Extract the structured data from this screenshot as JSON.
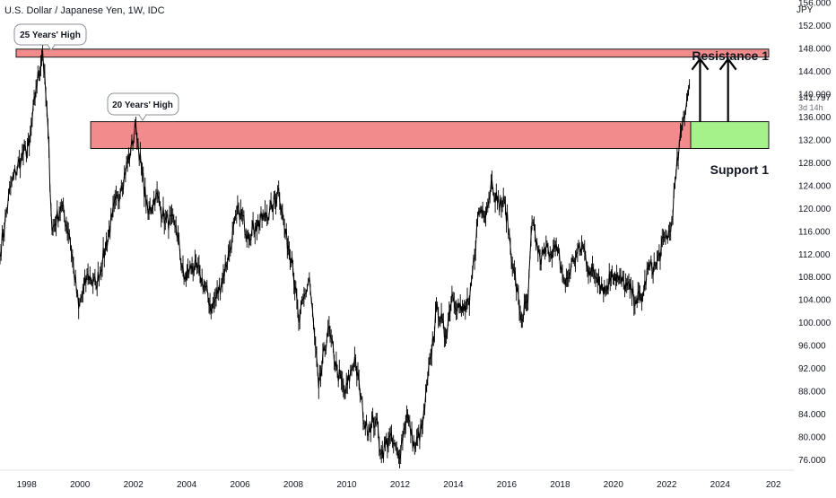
{
  "header": {
    "symbol_title": "U.S. Dollar / Japanese Yen, 1W, IDC",
    "currency": "JPY"
  },
  "price_label": {
    "value": "141.797",
    "countdown": "3d 14h",
    "color": "#131722"
  },
  "annotations": {
    "resistance_label": "Resistance 1",
    "support_label": "Support 1",
    "callout_25": "25 Years' High",
    "callout_20": "20 Years' High"
  },
  "colors": {
    "zone_red": "#f28b8b",
    "zone_green": "#a5f28b",
    "candles": "#000000",
    "axis_text": "#131722"
  },
  "chart_data": {
    "type": "line",
    "title": "U.S. Dollar / Japanese Yen, 1W, IDC",
    "xlabel": "",
    "ylabel": "JPY",
    "ylim": [
      74.5,
      156.5
    ],
    "xlim": [
      1997.0,
      2026.8
    ],
    "grid": false,
    "x_ticks": [
      "1998",
      "2000",
      "2002",
      "2004",
      "2006",
      "2008",
      "2010",
      "2012",
      "2014",
      "2016",
      "2018",
      "2020",
      "2022",
      "2024",
      "202"
    ],
    "y_ticks": [
      "156.000",
      "152.000",
      "148.000",
      "144.000",
      "140.000",
      "136.000",
      "132.000",
      "128.000",
      "124.000",
      "120.000",
      "116.000",
      "112.000",
      "108.000",
      "104.000",
      "100.000",
      "96.000",
      "92.000",
      "88.000",
      "84.000",
      "80.000",
      "76.000"
    ],
    "series": [
      {
        "values": [
          [
            1997.0,
            112.0
          ],
          [
            1997.4,
            124.0
          ],
          [
            1997.8,
            129.0
          ],
          [
            1998.1,
            131.0
          ],
          [
            1998.35,
            141.0
          ],
          [
            1998.6,
            147.5
          ],
          [
            1998.8,
            134.0
          ],
          [
            1998.95,
            116.0
          ],
          [
            1999.3,
            120.5
          ],
          [
            1999.6,
            115.5
          ],
          [
            1999.95,
            102.5
          ],
          [
            2000.3,
            108.5
          ],
          [
            2000.6,
            106.5
          ],
          [
            2000.95,
            113.0
          ],
          [
            2001.2,
            118.5
          ],
          [
            2001.55,
            124.0
          ],
          [
            2001.9,
            130.0
          ],
          [
            2002.1,
            134.5
          ],
          [
            2002.3,
            127.0
          ],
          [
            2002.55,
            119.0
          ],
          [
            2002.85,
            122.5
          ],
          [
            2003.2,
            118.0
          ],
          [
            2003.6,
            117.0
          ],
          [
            2003.9,
            107.5
          ],
          [
            2004.2,
            110.0
          ],
          [
            2004.5,
            108.5
          ],
          [
            2004.95,
            102.5
          ],
          [
            2005.3,
            107.0
          ],
          [
            2005.6,
            112.5
          ],
          [
            2005.95,
            120.0
          ],
          [
            2006.3,
            115.5
          ],
          [
            2006.6,
            117.0
          ],
          [
            2006.9,
            118.5
          ],
          [
            2007.2,
            120.0
          ],
          [
            2007.45,
            123.5
          ],
          [
            2007.7,
            115.5
          ],
          [
            2007.95,
            111.5
          ],
          [
            2008.2,
            100.0
          ],
          [
            2008.6,
            108.0
          ],
          [
            2008.95,
            88.5
          ],
          [
            2009.3,
            99.0
          ],
          [
            2009.65,
            91.5
          ],
          [
            2009.95,
            87.5
          ],
          [
            2010.3,
            94.0
          ],
          [
            2010.7,
            81.5
          ],
          [
            2011.1,
            83.0
          ],
          [
            2011.3,
            77.0
          ],
          [
            2011.6,
            80.0
          ],
          [
            2011.95,
            76.5
          ],
          [
            2012.25,
            84.0
          ],
          [
            2012.55,
            78.0
          ],
          [
            2012.85,
            82.0
          ],
          [
            2013.15,
            94.0
          ],
          [
            2013.4,
            103.0
          ],
          [
            2013.7,
            97.5
          ],
          [
            2013.95,
            105.0
          ],
          [
            2014.3,
            102.0
          ],
          [
            2014.6,
            103.0
          ],
          [
            2014.95,
            119.5
          ],
          [
            2015.25,
            120.0
          ],
          [
            2015.45,
            125.0
          ],
          [
            2015.65,
            121.0
          ],
          [
            2015.95,
            120.5
          ],
          [
            2016.25,
            109.5
          ],
          [
            2016.55,
            100.5
          ],
          [
            2016.8,
            104.0
          ],
          [
            2016.95,
            117.5
          ],
          [
            2017.25,
            111.0
          ],
          [
            2017.55,
            113.0
          ],
          [
            2017.9,
            112.5
          ],
          [
            2018.2,
            106.5
          ],
          [
            2018.5,
            111.0
          ],
          [
            2018.85,
            113.5
          ],
          [
            2019.1,
            109.0
          ],
          [
            2019.45,
            108.0
          ],
          [
            2019.7,
            105.5
          ],
          [
            2019.95,
            109.0
          ],
          [
            2020.2,
            107.5
          ],
          [
            2020.5,
            106.5
          ],
          [
            2020.85,
            104.0
          ],
          [
            2021.1,
            104.5
          ],
          [
            2021.3,
            109.5
          ],
          [
            2021.6,
            110.0
          ],
          [
            2021.95,
            115.0
          ],
          [
            2022.15,
            116.0
          ],
          [
            2022.35,
            126.0
          ],
          [
            2022.55,
            133.5
          ],
          [
            2022.75,
            139.0
          ],
          [
            2022.85,
            141.8
          ]
        ]
      }
    ],
    "annotation_zones": [
      {
        "label": "Resistance 1",
        "price_range": [
          146.5,
          147.9
        ],
        "x_range": [
          1997.0,
          2026.8
        ],
        "color": "#f28b8b"
      },
      {
        "label": "",
        "price_range": [
          130.5,
          135.2
        ],
        "x_range": [
          2000.4,
          2022.9
        ],
        "color": "#f28b8b"
      },
      {
        "label": "Support 1",
        "price_range": [
          130.5,
          135.2
        ],
        "x_range": [
          2022.9,
          2026.8
        ],
        "color": "#a5f28b"
      }
    ],
    "callouts": [
      {
        "label": "25 Years' High",
        "x": 1998.6,
        "y": 147.5
      },
      {
        "label": "20 Years' High",
        "x": 2002.1,
        "y": 134.5
      }
    ],
    "arrows": [
      {
        "x": 2023.25,
        "from": 135.2,
        "to": 146.5
      },
      {
        "x": 2024.3,
        "from": 135.2,
        "to": 146.5
      }
    ],
    "last_price": 141.797
  }
}
